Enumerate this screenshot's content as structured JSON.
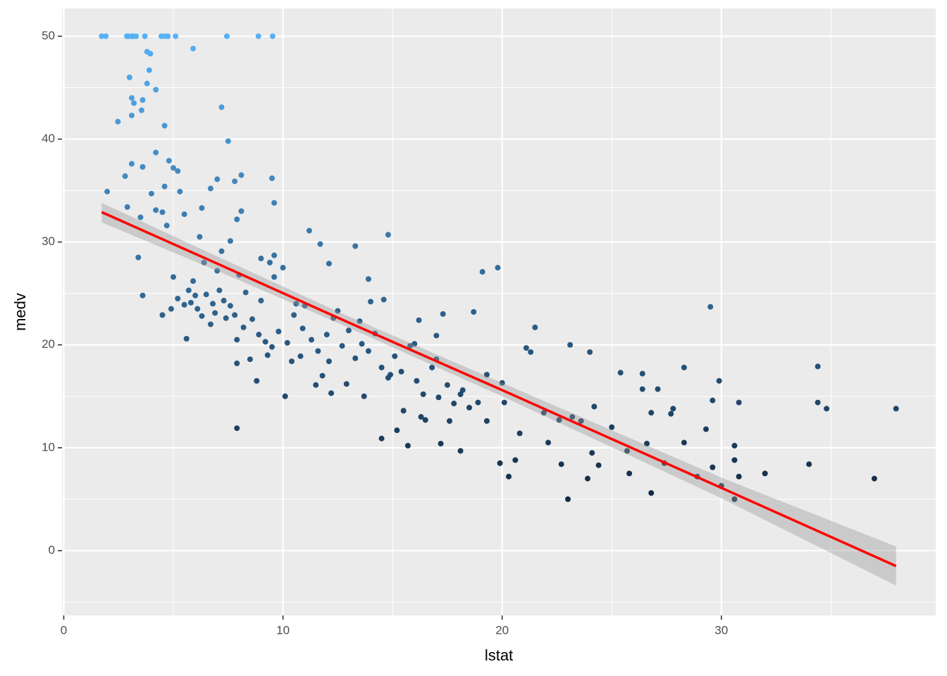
{
  "chart_data": {
    "type": "scatter",
    "x_label": "lstat",
    "y_label": "medv",
    "xlim": [
      -0.08,
      39.78
    ],
    "ylim": [
      -6.3,
      52.7
    ],
    "xticks": [
      0,
      10,
      20,
      30
    ],
    "yticks": [
      0,
      10,
      20,
      30,
      40,
      50
    ],
    "xminor": [
      5,
      15,
      25,
      35
    ],
    "yminor": [
      -5,
      5,
      15,
      25,
      35,
      45
    ],
    "grid": true,
    "color_low": "#132B43",
    "color_high": "#56B1F7",
    "x": [
      1.73,
      1.92,
      2.88,
      2.96,
      3.1,
      3.16,
      3.3,
      3.7,
      4.45,
      4.6,
      4.75,
      5.1,
      7.44,
      8.88,
      9.53,
      5.9,
      3.8,
      3.95,
      3.9,
      3.0,
      3.8,
      4.2,
      3.1,
      3.6,
      3.2,
      7.2,
      3.55,
      3.1,
      2.47,
      4.6,
      7.5,
      4.2,
      4.8,
      3.1,
      3.6,
      5.0,
      5.2,
      8.1,
      2.8,
      9.5,
      7.0,
      7.8,
      4.6,
      6.7,
      1.98,
      5.3,
      4.0,
      9.6,
      2.9,
      6.3,
      4.2,
      8.1,
      4.5,
      5.5,
      3.5,
      7.9,
      4.7,
      11.2,
      14.8,
      6.2,
      7.6,
      11.7,
      13.3,
      7.2,
      9.6,
      3.4,
      9.0,
      9.4,
      12.1,
      19.8,
      19.1,
      10.0,
      5.0,
      13.9,
      9.6,
      5.7,
      3.6,
      14.6,
      29.5,
      18.7,
      17.3,
      4.5,
      16.2,
      21.5,
      17.0,
      5.6,
      23.1,
      21.1,
      24.0,
      21.3,
      28.3,
      34.4,
      25.4,
      26.4,
      19.3,
      29.9,
      20.0,
      26.4,
      27.1,
      10.1,
      29.6,
      30.8,
      34.4,
      34.8,
      37.97,
      27.8,
      26.8,
      27.7,
      22.6,
      23.6,
      25.0,
      7.9,
      29.3,
      14.5,
      28.3,
      22.1,
      26.6,
      17.2,
      15.7,
      30.6,
      25.7,
      18.1,
      24.1,
      20.6,
      30.6,
      19.9,
      27.4,
      22.7,
      34.0,
      24.4,
      29.6,
      25.8,
      31.99,
      20.3,
      28.9,
      30.8,
      23.9,
      36.98,
      30.0,
      26.8,
      23.0,
      30.6,
      5.8,
      6.1,
      6.5,
      6.9,
      7.3,
      7.6,
      6.3,
      5.5,
      5.2,
      4.9,
      6.7,
      7.1,
      7.8,
      8.2,
      8.6,
      8.9,
      9.2,
      9.5,
      9.8,
      10.2,
      10.5,
      10.9,
      11.3,
      11.6,
      12.0,
      12.3,
      12.7,
      13.0,
      13.3,
      13.6,
      13.9,
      14.2,
      14.5,
      14.8,
      15.1,
      15.4,
      15.8,
      16.1,
      16.4,
      16.8,
      17.1,
      17.5,
      17.8,
      18.1,
      18.5,
      18.9,
      8.3,
      8.0,
      7.0,
      6.4,
      5.9,
      10.6,
      11.0,
      12.5,
      13.5,
      9.0,
      7.9,
      8.5,
      9.3,
      10.4,
      11.8,
      12.9,
      13.7,
      14.9,
      15.5,
      16.3,
      17.6,
      19.3,
      20.1,
      21.9,
      23.2,
      24.2,
      18.2,
      16.0,
      17.0,
      14.0,
      12.1,
      10.8,
      6.0,
      6.8,
      7.4,
      8.8,
      7.9,
      11.5,
      12.2,
      15.2,
      16.5,
      20.8
    ],
    "values": [
      50,
      50,
      50,
      50,
      50,
      50,
      50,
      50,
      50,
      50,
      50,
      50,
      50,
      50,
      50,
      48.8,
      48.5,
      48.3,
      46.7,
      46.0,
      45.4,
      44.8,
      44.0,
      43.8,
      43.5,
      43.1,
      42.8,
      42.3,
      41.7,
      41.3,
      39.8,
      38.7,
      37.9,
      37.6,
      37.3,
      37.2,
      36.9,
      36.5,
      36.4,
      36.2,
      36.1,
      35.9,
      35.4,
      35.2,
      34.9,
      34.9,
      34.7,
      33.8,
      33.4,
      33.3,
      33.1,
      33.0,
      32.9,
      32.7,
      32.4,
      32.2,
      31.6,
      31.1,
      30.7,
      30.5,
      30.1,
      29.8,
      29.6,
      29.1,
      28.7,
      28.5,
      28.4,
      28.0,
      27.9,
      27.5,
      27.1,
      27.5,
      26.6,
      26.4,
      26.6,
      25.3,
      24.8,
      24.4,
      23.7,
      23.2,
      23.0,
      22.9,
      22.4,
      21.7,
      20.9,
      20.6,
      20.0,
      19.7,
      19.3,
      19.3,
      17.8,
      17.9,
      17.3,
      17.2,
      17.1,
      16.5,
      16.3,
      15.7,
      15.7,
      15.0,
      14.6,
      14.4,
      14.4,
      13.8,
      13.8,
      13.8,
      13.4,
      13.3,
      12.7,
      12.6,
      12.0,
      11.9,
      11.8,
      10.9,
      10.5,
      10.5,
      10.4,
      10.4,
      10.2,
      10.2,
      9.7,
      9.7,
      9.5,
      8.8,
      8.8,
      8.5,
      8.5,
      8.4,
      8.4,
      8.3,
      8.1,
      7.5,
      7.5,
      7.2,
      7.2,
      7.2,
      7.0,
      7.0,
      6.3,
      5.6,
      5.0,
      5.0,
      24.1,
      23.5,
      24.9,
      23.1,
      24.3,
      23.8,
      22.8,
      23.9,
      24.5,
      23.5,
      22.0,
      25.3,
      22.9,
      21.7,
      22.5,
      21.0,
      20.3,
      19.8,
      21.3,
      20.2,
      22.9,
      21.6,
      20.5,
      19.4,
      21.0,
      22.6,
      19.9,
      21.4,
      18.7,
      20.1,
      19.4,
      21.1,
      17.8,
      16.8,
      18.9,
      17.4,
      19.9,
      16.5,
      15.2,
      17.8,
      14.9,
      16.1,
      14.3,
      15.2,
      13.9,
      14.4,
      25.1,
      26.8,
      27.2,
      28.0,
      26.2,
      24.0,
      23.8,
      23.3,
      22.3,
      24.3,
      20.5,
      18.6,
      19.0,
      18.4,
      17.0,
      16.2,
      15.0,
      17.1,
      13.6,
      13.0,
      12.6,
      12.6,
      14.4,
      13.4,
      13.0,
      14.0,
      15.6,
      20.1,
      18.6,
      24.2,
      18.4,
      18.9,
      24.8,
      24.0,
      22.6,
      16.5,
      18.2,
      16.1,
      15.3,
      11.7,
      12.7,
      11.4
    ],
    "fit": {
      "color": "#FF0000",
      "x": [
        1.73,
        7,
        12.65,
        20,
        30,
        37.97
      ],
      "values": [
        32.9,
        27.9,
        22.5,
        15.6,
        6.1,
        -1.5
      ],
      "lower": [
        31.9,
        27.2,
        22.0,
        15.0,
        5.1,
        -3.4
      ],
      "upper": [
        33.8,
        28.6,
        23.1,
        16.3,
        7.1,
        0.4
      ]
    }
  }
}
